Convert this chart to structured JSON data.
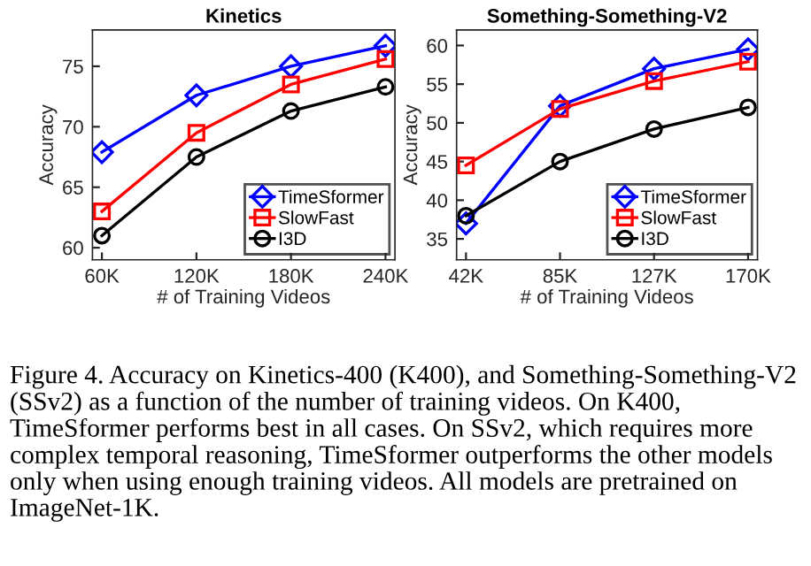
{
  "chart_data": [
    {
      "type": "line",
      "title": "Kinetics",
      "xlabel": "# of Training Videos",
      "ylabel": "Accuracy",
      "categories": [
        "60K",
        "120K",
        "180K",
        "240K"
      ],
      "series": [
        {
          "name": "TimeSformer",
          "color": "#0000ff",
          "marker": "diamond",
          "values": [
            67.9,
            72.6,
            75.0,
            76.7
          ]
        },
        {
          "name": "SlowFast",
          "color": "#ff0000",
          "marker": "square",
          "values": [
            63.0,
            69.5,
            73.5,
            75.6
          ]
        },
        {
          "name": "I3D",
          "color": "#000000",
          "marker": "circle",
          "values": [
            61.0,
            67.5,
            71.3,
            73.3
          ]
        }
      ],
      "ylim": [
        59,
        78
      ],
      "yticks": [
        60,
        65,
        70,
        75
      ],
      "grid": false,
      "legend": "bottom right",
      "annotations": [
        "Figure 4. Accuracy on Kinetics-400 (K400), and Something-Something-V2 (SSv2) as a function of the number of training videos. On K400, TimeSformer performs best in all cases. On SSv2, which requires more complex temporal reasoning, TimeSformer outperforms the other models only when using enough training videos. All models are pretrained on ImageNet-1K."
      ]
    },
    {
      "type": "line",
      "title": "Something-Something-V2",
      "xlabel": "# of Training Videos",
      "ylabel": "Accuracy",
      "categories": [
        "42K",
        "85K",
        "127K",
        "170K"
      ],
      "series": [
        {
          "name": "TimeSformer",
          "color": "#0000ff",
          "marker": "diamond",
          "values": [
            37.0,
            52.2,
            57.0,
            59.5
          ]
        },
        {
          "name": "SlowFast",
          "color": "#ff0000",
          "marker": "square",
          "values": [
            44.5,
            51.8,
            55.4,
            57.9
          ]
        },
        {
          "name": "I3D",
          "color": "#000000",
          "marker": "circle",
          "values": [
            38.0,
            45.0,
            49.2,
            52.0
          ]
        }
      ],
      "ylim": [
        32.3,
        62
      ],
      "yticks": [
        35,
        40,
        45,
        50,
        55,
        60
      ],
      "grid": false,
      "legend": "bottom right"
    }
  ]
}
